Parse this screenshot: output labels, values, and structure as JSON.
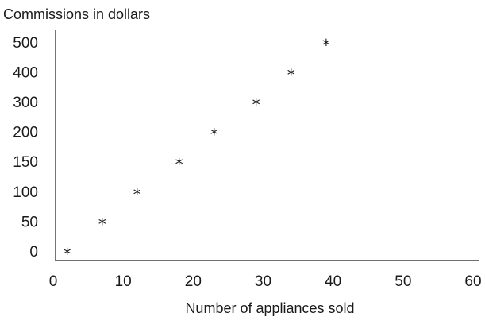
{
  "chart_data": {
    "type": "scatter",
    "title": "",
    "ylabel": "Commissions in dollars",
    "xlabel": "Number of appliances sold",
    "marker": "*",
    "xlim": [
      0,
      60
    ],
    "xticks": [
      "0",
      "10",
      "20",
      "30",
      "40",
      "50",
      "60"
    ],
    "yticks": [
      "0",
      "50",
      "100",
      "150",
      "200",
      "300",
      "400",
      "500"
    ],
    "y_axis_note": "category-spaced ticks (non-linear)",
    "grid": false,
    "points": [
      {
        "x": 2,
        "y": 0
      },
      {
        "x": 7,
        "y": 50
      },
      {
        "x": 12,
        "y": 100
      },
      {
        "x": 18,
        "y": 150
      },
      {
        "x": 23,
        "y": 200
      },
      {
        "x": 29,
        "y": 300
      },
      {
        "x": 34,
        "y": 400
      },
      {
        "x": 39,
        "y": 500
      }
    ]
  }
}
